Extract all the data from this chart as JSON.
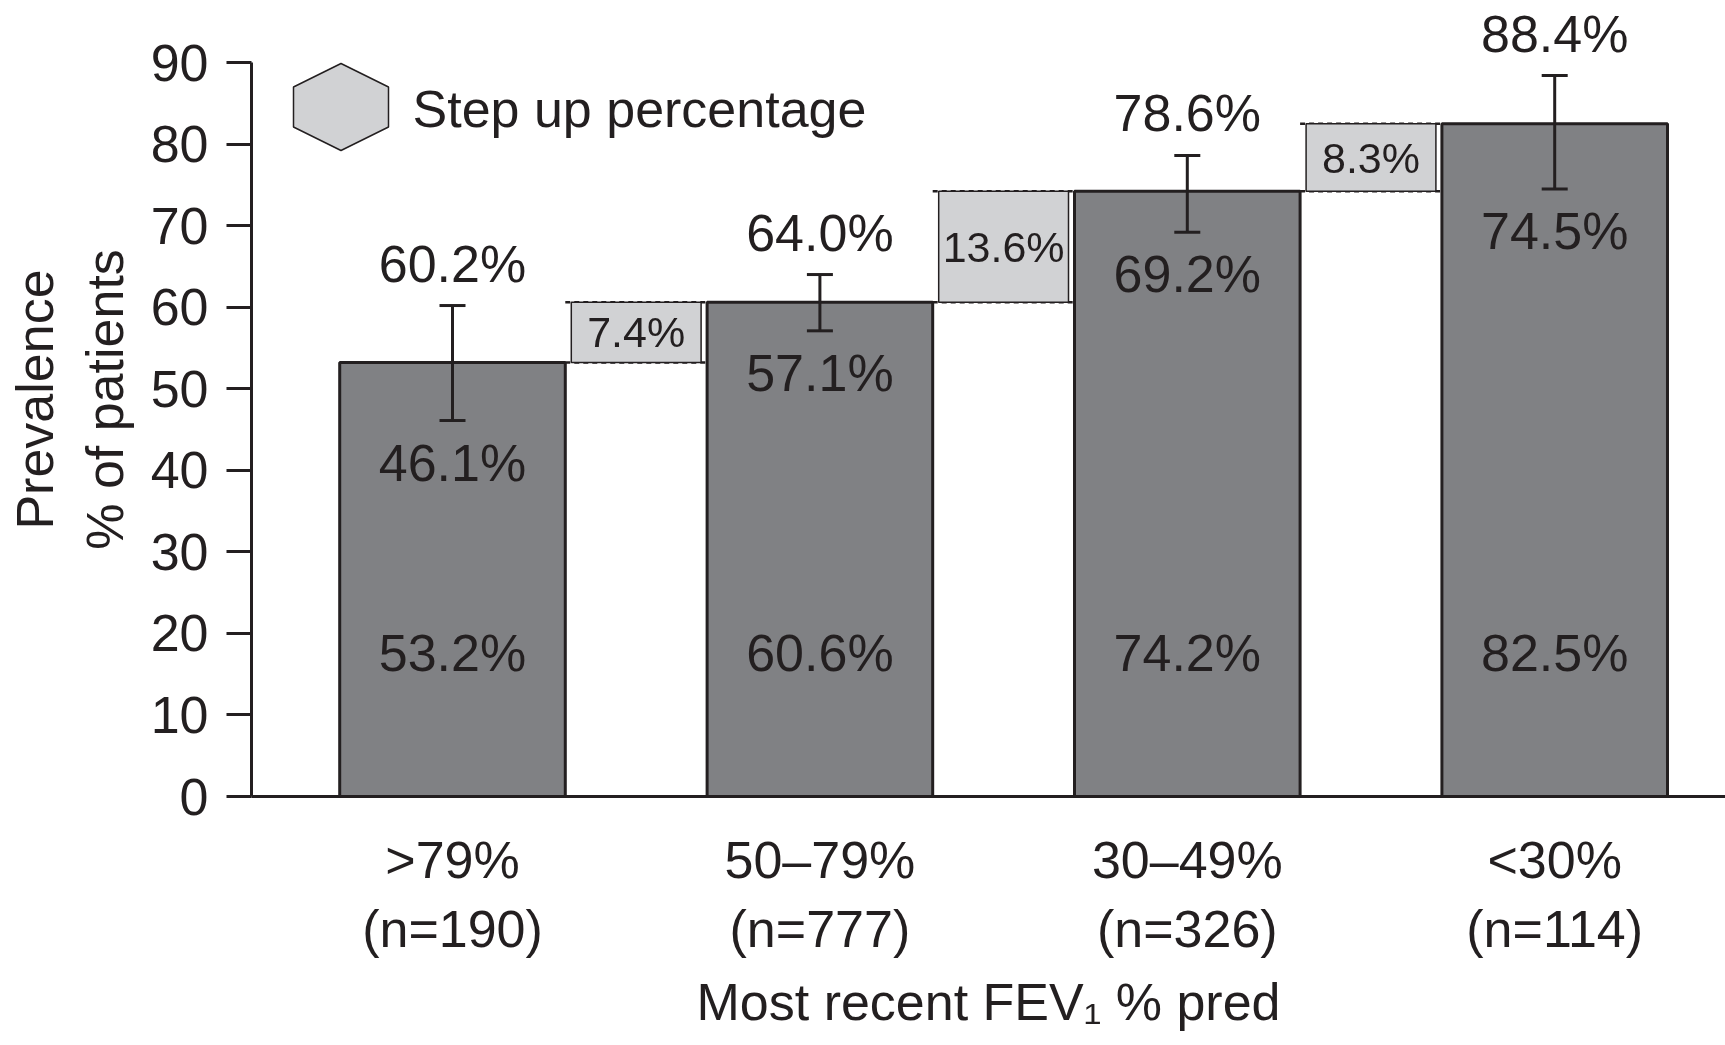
{
  "chart_data": {
    "type": "bar",
    "categories": [
      ">79%\n(n=190)",
      null,
      "50–79%\n(n=777)",
      null,
      "30–49%\n(n=326)",
      null,
      "<30%\n(n=114)"
    ],
    "series": [
      {
        "color": "#808184",
        "values": [
          53.2,
          null,
          60.6,
          null,
          74.2,
          null,
          82.5
        ],
        "value_labels": [
          "53.2%",
          null,
          "60.6%",
          null,
          "74.2%",
          null,
          "82.5%"
        ],
        "errors": [
          [
            46.1,
            60.2
          ],
          null,
          [
            57.1,
            64.0
          ],
          null,
          [
            69.2,
            78.6
          ],
          null,
          [
            74.5,
            88.4
          ]
        ]
      },
      {
        "name": "Step up percentage",
        "color": "#d1d2d4",
        "base": [
          null,
          53.2,
          null,
          60.6,
          null,
          74.2,
          null
        ],
        "values": [
          null,
          7.4,
          null,
          13.6,
          null,
          8.3,
          null
        ],
        "value_labels": [
          null,
          "7.4%",
          null,
          "13.6%",
          null,
          "8.3%",
          null
        ]
      }
    ],
    "xlabel": "Most recent FEV₁ % pred",
    "ylabel": "Prevalence\n% of patients",
    "ylim": [
      0,
      90
    ],
    "yticks": [
      0,
      10,
      20,
      30,
      40,
      50,
      60,
      70,
      80,
      90
    ],
    "grid": false,
    "legend": "top left",
    "annotations": [
      {
        "text": "60.2%",
        "x": ">79%\n(n=190)",
        "y": 60.2
      },
      {
        "text": "64.0%",
        "x": "50–79%\n(n=777)",
        "y": 64.0
      },
      {
        "text": "78.6%",
        "x": "30–49%\n(n=326)",
        "y": 78.6
      },
      {
        "text": "88.4%",
        "x": "<30%\n(n=114)",
        "y": 88.4
      },
      {
        "text": "46.1%",
        "x": ">79%\n(n=190)",
        "y": 46.1
      },
      {
        "text": "57.1%",
        "x": "50–79%\n(n=777)",
        "y": 57.1
      },
      {
        "text": "69.2%",
        "x": "30–49%\n(n=326)",
        "y": 69.2
      },
      {
        "text": "74.5%",
        "x": "<30%\n(n=114)",
        "y": 74.5
      }
    ]
  }
}
